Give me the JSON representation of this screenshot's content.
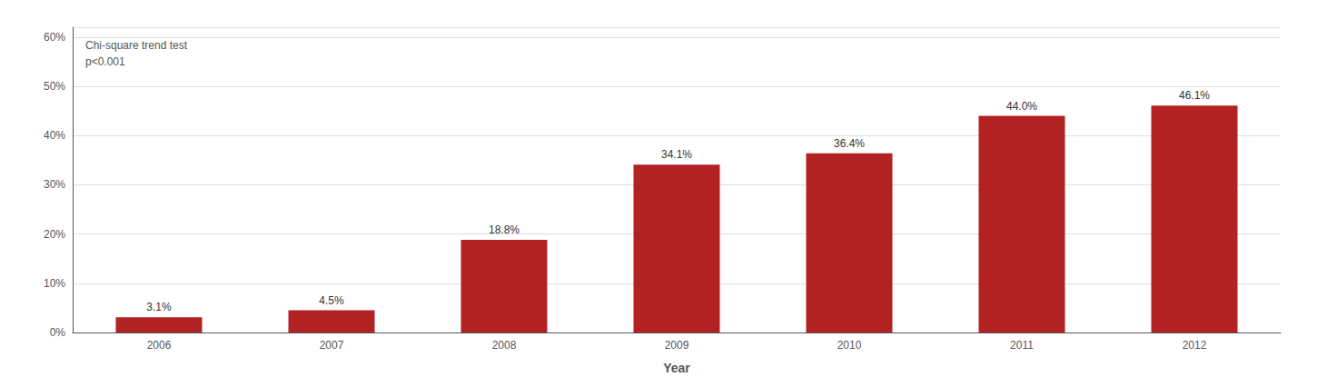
{
  "chart_data": {
    "type": "bar",
    "categories": [
      "2006",
      "2007",
      "2008",
      "2009",
      "2010",
      "2011",
      "2012"
    ],
    "values": [
      3.1,
      4.5,
      18.8,
      34.1,
      36.4,
      44.0,
      46.1
    ],
    "value_labels": [
      "3.1%",
      "4.5%",
      "18.8%",
      "34.1%",
      "36.4%",
      "44.0%",
      "46.1%"
    ],
    "data_labels": true,
    "color": "#B22222",
    "xlabel": "Year",
    "ylim": [
      0,
      62
    ],
    "yticks": [
      {
        "value": 0,
        "label": "0%"
      },
      {
        "value": 10,
        "label": "10%"
      },
      {
        "value": 20,
        "label": "20%"
      },
      {
        "value": 30,
        "label": "30%"
      },
      {
        "value": 40,
        "label": "40%"
      },
      {
        "value": 50,
        "label": "50%"
      },
      {
        "value": 60,
        "label": "60%"
      }
    ],
    "grid": true,
    "annotations": [
      "Chi-square trend test",
      "p<0.001"
    ]
  }
}
